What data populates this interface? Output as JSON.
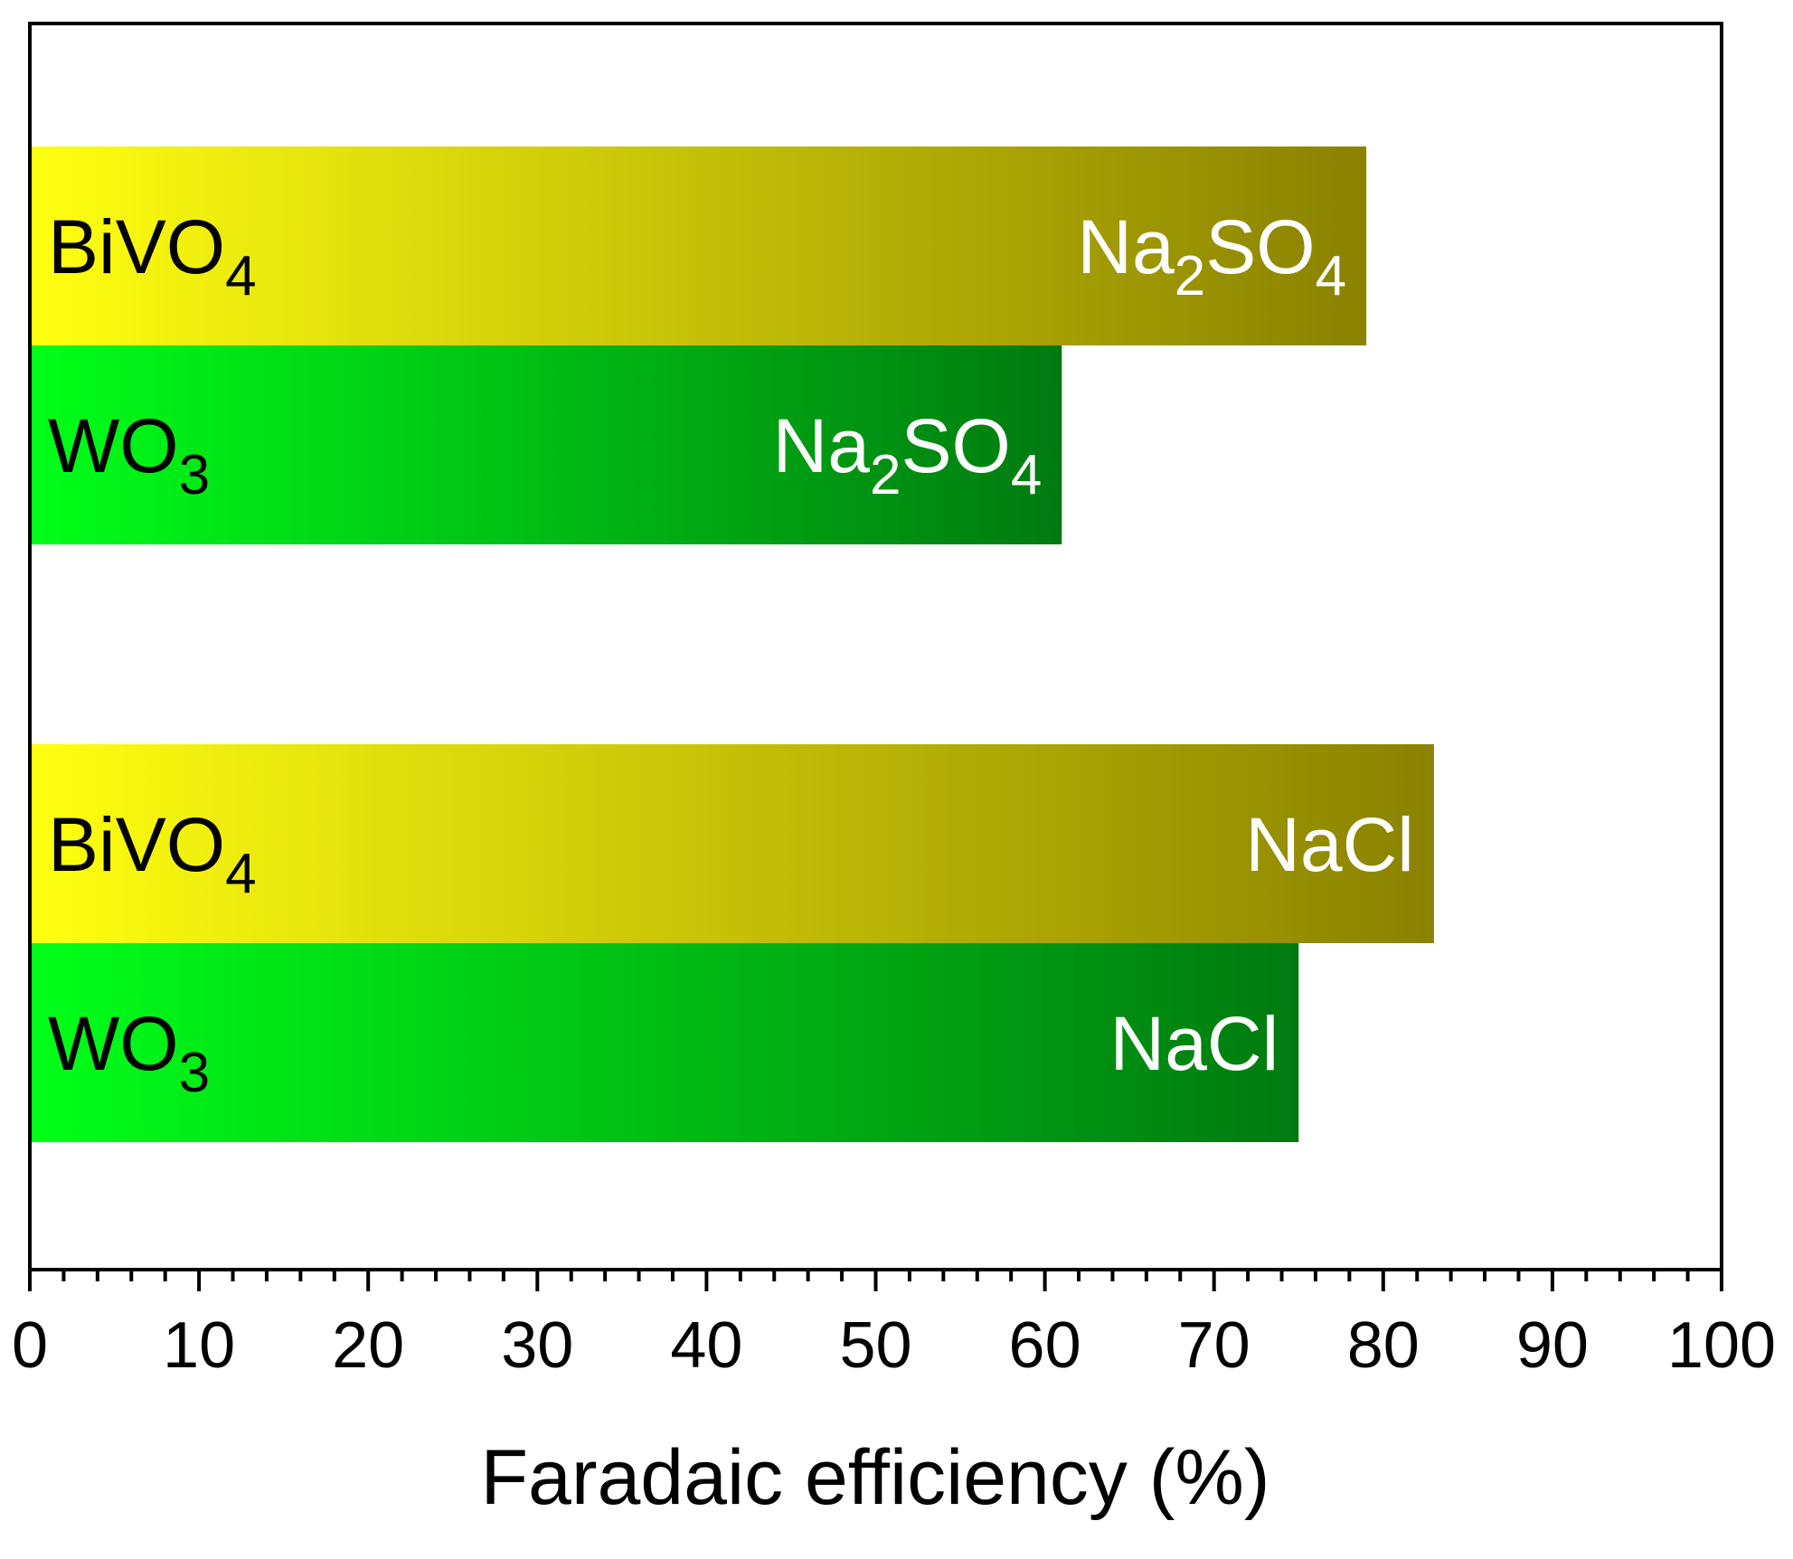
{
  "chart_data": {
    "type": "bar",
    "orientation": "horizontal",
    "xlabel": "Faradaic efficiency (%)",
    "ylabel": "",
    "xlim": [
      0,
      100
    ],
    "x_ticks": [
      "0",
      "10",
      "20",
      "30",
      "40",
      "50",
      "60",
      "70",
      "80",
      "90",
      "100"
    ],
    "grid": false,
    "legend": "none",
    "bars": [
      {
        "material": "BiVO",
        "material_sub": "4",
        "electrolyte": [
          {
            "t": "Na"
          },
          {
            "t": "2",
            "sub": true
          },
          {
            "t": "SO"
          },
          {
            "t": "4",
            "sub": true
          }
        ],
        "value": 79,
        "series": "BiVO4"
      },
      {
        "material": "WO",
        "material_sub": "3",
        "electrolyte": [
          {
            "t": "Na"
          },
          {
            "t": "2",
            "sub": true
          },
          {
            "t": "SO"
          },
          {
            "t": "4",
            "sub": true
          }
        ],
        "value": 61,
        "series": "WO3"
      },
      {
        "material": "BiVO",
        "material_sub": "4",
        "electrolyte": [
          {
            "t": "NaCl"
          }
        ],
        "value": 83,
        "series": "BiVO4"
      },
      {
        "material": "WO",
        "material_sub": "3",
        "electrolyte": [
          {
            "t": "NaCl"
          }
        ],
        "value": 75,
        "series": "WO3"
      }
    ],
    "colors": {
      "BiVO4": [
        "#ffff10",
        "#8a8200"
      ],
      "WO3": [
        "#00ff18",
        "#007a10"
      ],
      "label_dark": "#000000",
      "label_light": "#ffffff",
      "axis": "#000000"
    }
  }
}
